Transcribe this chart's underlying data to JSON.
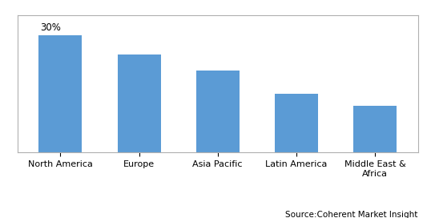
{
  "categories": [
    "North America",
    "Europe",
    "Asia Pacific",
    "Latin America",
    "Middle East &\nAfrica"
  ],
  "values": [
    30,
    25,
    21,
    15,
    12
  ],
  "bar_color": "#5B9BD5",
  "annotation": "30%",
  "annotation_index": 0,
  "source_text": "Source:Coherent Market Insight",
  "ylim": [
    0,
    35
  ],
  "bar_width": 0.55,
  "background_color": "#ffffff",
  "grid_color": "#d9d9d9",
  "annotation_fontsize": 8.5,
  "tick_fontsize": 8,
  "source_fontsize": 7.5
}
